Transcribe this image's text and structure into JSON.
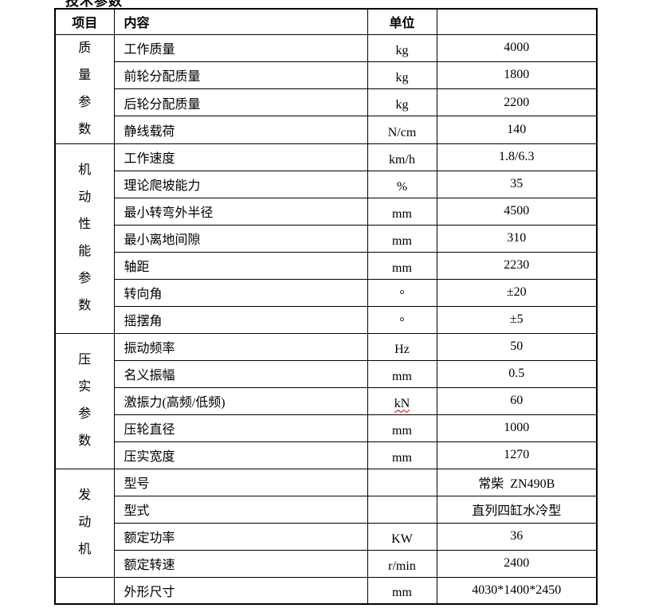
{
  "page": {
    "top_clipped_text": "技术参数"
  },
  "table": {
    "headers": [
      "项目",
      "内容",
      "单位",
      ""
    ],
    "sections": [
      {
        "name": "质\n量\n参\n数",
        "rows": [
          {
            "label": "工作质量",
            "unit": "kg",
            "value": "4000"
          },
          {
            "label": "前轮分配质量",
            "unit": "kg",
            "value": "1800"
          },
          {
            "label": "后轮分配质量",
            "unit": "kg",
            "value": "2200"
          },
          {
            "label": "静线载荷",
            "unit": "N/cm",
            "value": "140"
          }
        ]
      },
      {
        "name": "机\n动\n性\n能\n参\n数",
        "rows": [
          {
            "label": "工作速度",
            "unit": "km/h",
            "value": "1.8/6.3"
          },
          {
            "label": "理论爬坡能力",
            "unit": "%",
            "value": "35"
          },
          {
            "label": "最小转弯外半径",
            "unit": "mm",
            "value": "4500"
          },
          {
            "label": "最小离地间隙",
            "unit": "mm",
            "value": "310"
          },
          {
            "label": "轴距",
            "unit": "mm",
            "value": "2230"
          },
          {
            "label": "转向角",
            "unit": "°",
            "value": "±20"
          },
          {
            "label": "摇摆角",
            "unit": "°",
            "value": "±5"
          }
        ]
      },
      {
        "name": "压\n实\n参\n数",
        "rows": [
          {
            "label": "振动频率",
            "unit": "Hz",
            "value": "50"
          },
          {
            "label": "名义振幅",
            "unit": "mm",
            "value": "0.5"
          },
          {
            "label": "激振力(高频/低频)",
            "unit": "kN",
            "value": "60"
          },
          {
            "label": "压轮直径",
            "unit": "mm",
            "value": "1000"
          },
          {
            "label": "压实宽度",
            "unit": "mm",
            "value": "1270"
          }
        ]
      },
      {
        "name": "发\n动\n机",
        "rows": [
          {
            "label": "型号",
            "unit": "",
            "value": "常柴  ZN490B"
          },
          {
            "label": "型式",
            "unit": "",
            "value": "直列四缸水冷型"
          },
          {
            "label": "额定功率",
            "unit": "KW",
            "value": "36"
          },
          {
            "label": "额定转速",
            "unit": "r/min",
            "value": "2400"
          }
        ]
      },
      {
        "name": "",
        "rows": [
          {
            "label": "外形尺寸",
            "unit": "mm",
            "value": "4030*1400*2450"
          }
        ]
      }
    ]
  }
}
